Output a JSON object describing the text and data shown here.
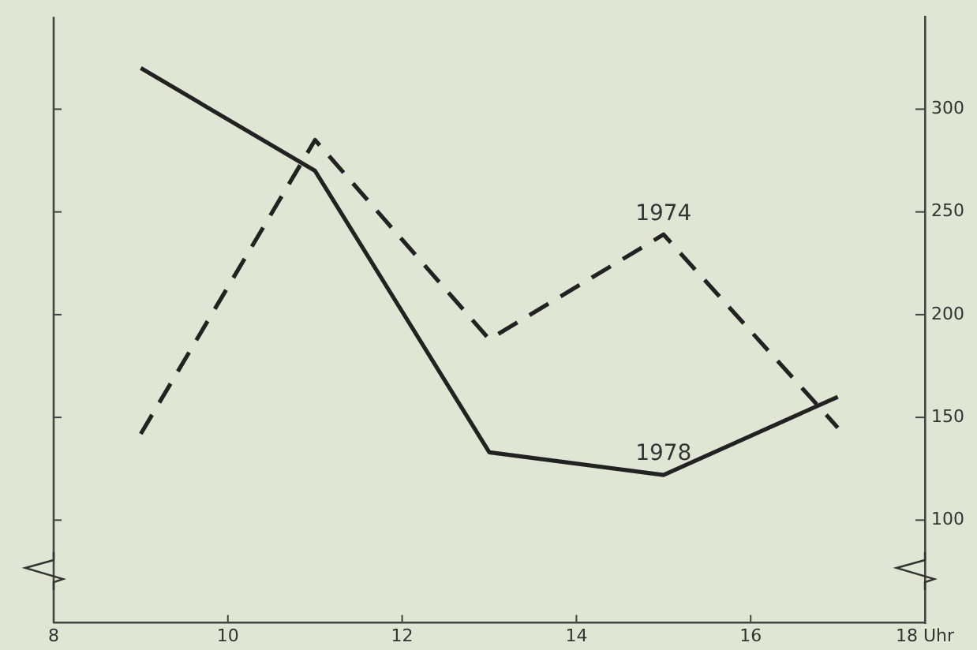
{
  "chart_data": {
    "type": "line",
    "x": [
      9,
      11,
      13,
      15,
      17
    ],
    "series": [
      {
        "color": "#222222",
        "line_style": "solid",
        "values": [
          320,
          270,
          133,
          122,
          160
        ]
      },
      {
        "color": "#222222",
        "line_style": "dashed",
        "values": [
          142,
          285,
          188,
          239,
          145
        ]
      }
    ],
    "xlim": [
      8,
      18
    ],
    "xticks": [
      8,
      10,
      12,
      14,
      16,
      {
        "value": 18,
        "label": "18 Uhr"
      }
    ],
    "ylim": [
      50,
      345
    ],
    "yticks": [
      100,
      150,
      200,
      250,
      300
    ],
    "annotations": [
      {
        "text": "1974",
        "x": 15,
        "y": 239
      },
      {
        "text": "1978",
        "x": 15,
        "y": 122
      }
    ],
    "grid": false,
    "legend": false,
    "marker": "none"
  }
}
